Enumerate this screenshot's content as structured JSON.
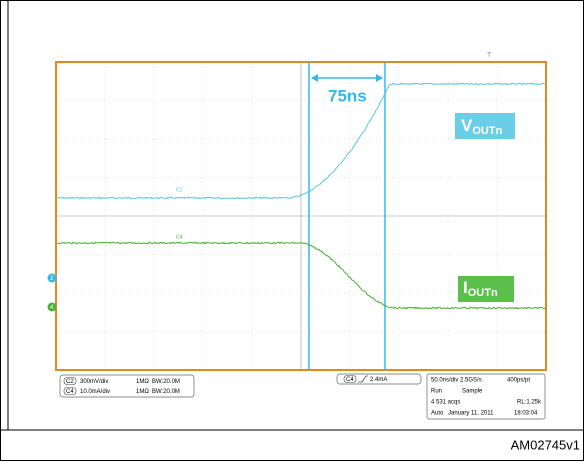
{
  "screen": {
    "trigger_label": "T",
    "cursor_delta": "75ns",
    "trace_labels": [
      {
        "main": "V",
        "sub": "OUTn"
      },
      {
        "main": "I",
        "sub": "OUTn"
      }
    ],
    "trace_tags": [
      "C2",
      "C4"
    ],
    "level_markers": [
      "2",
      "4"
    ]
  },
  "status": {
    "channels": [
      {
        "id": "C2",
        "scale": "300mV/div",
        "impedance": "1MΩ",
        "bandwidth": "BW:20.0M"
      },
      {
        "id": "C4",
        "scale": "10.0mA/div",
        "impedance": "1MΩ",
        "bandwidth": "BW:20.0M"
      }
    ],
    "trigger": {
      "source": "C4",
      "level": "2.4mA"
    },
    "acquisition": {
      "timebase": "50.0ns/div 2.5GS/s",
      "resolution": "400ps/pt",
      "state": "Run",
      "mode": "Sample",
      "count": "4 531 acqs",
      "record": "RL:1.25k",
      "trigger_mode": "Auto",
      "date": "January 11, 2011",
      "time": "18:03:04"
    }
  },
  "figure_id": "AM02745v1"
}
